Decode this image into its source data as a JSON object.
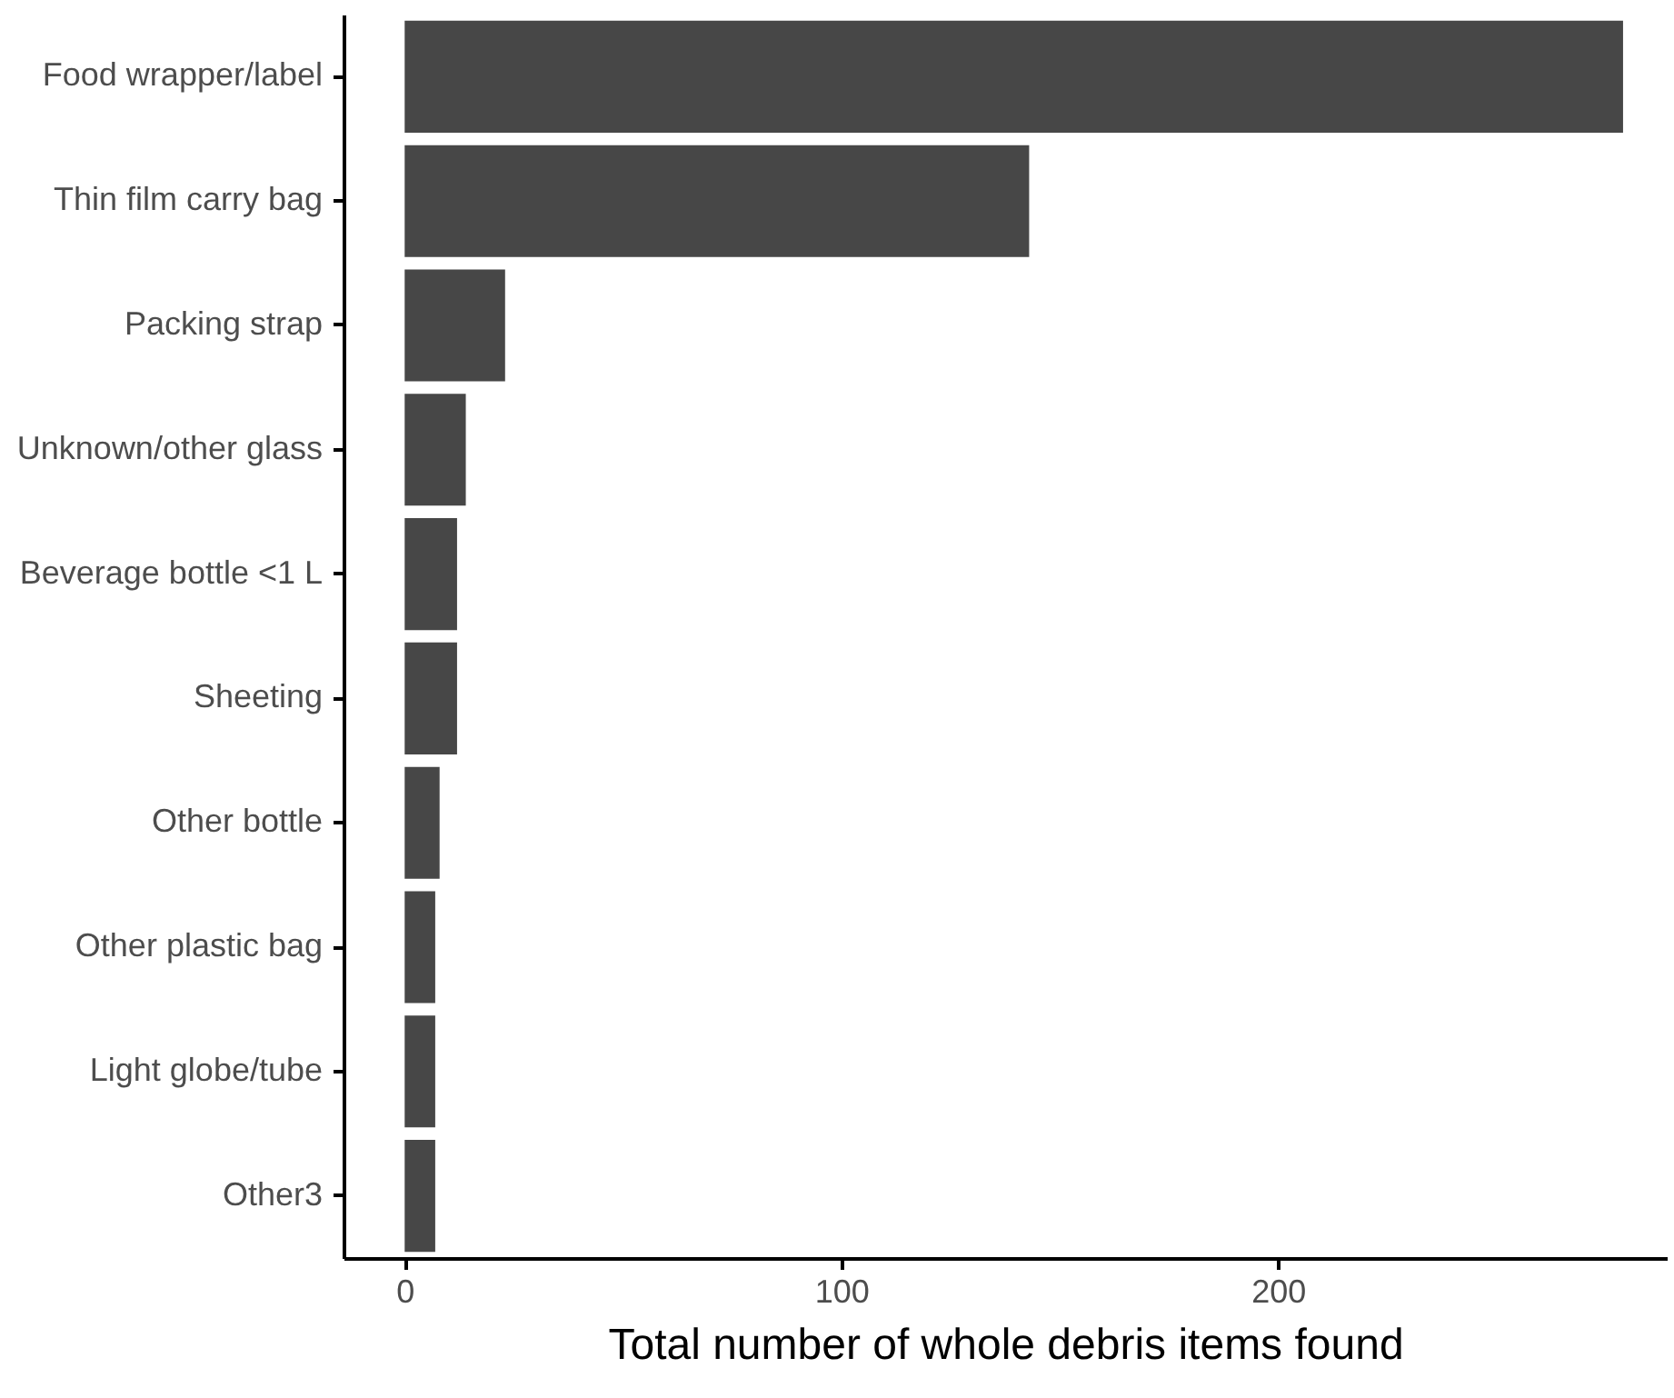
{
  "chart_data": {
    "type": "bar",
    "orientation": "horizontal",
    "xlabel": "Total number of whole debris items found",
    "categories": [
      "Food wrapper/label",
      "Thin film carry bag",
      "Packing strap",
      "Unknown/other glass",
      "Beverage bottle <1 L",
      "Sheeting ",
      "Other bottle",
      "Other plastic bag",
      "Light globe/tube",
      "Other3"
    ],
    "values": [
      279,
      143,
      23,
      14,
      12,
      12,
      8,
      7,
      7,
      7
    ],
    "color": "#474747",
    "xlim": [
      -14,
      289
    ],
    "xticks": [
      0,
      100,
      200
    ],
    "grid": false
  }
}
